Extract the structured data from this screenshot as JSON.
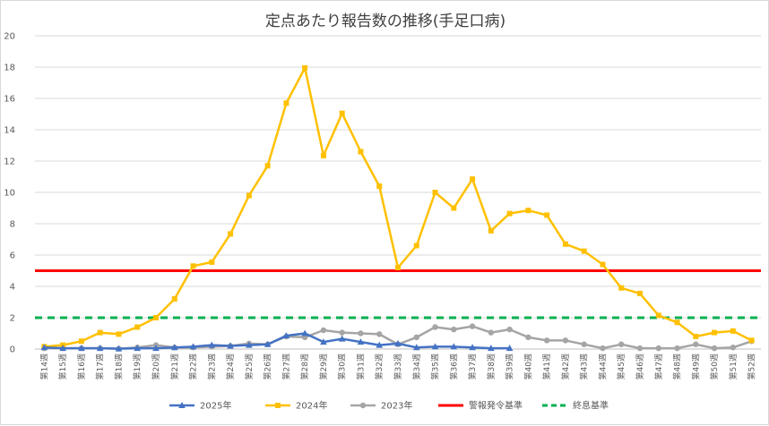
{
  "chart_data": {
    "type": "line",
    "title": "定点あたり報告数の推移(手足口病)",
    "ylim": [
      0,
      20
    ],
    "yticks": [
      0,
      2,
      4,
      6,
      8,
      10,
      12,
      14,
      16,
      18,
      20
    ],
    "grid": true,
    "legend_position": "bottom",
    "categories": [
      "第14週",
      "第15週",
      "第16週",
      "第17週",
      "第18週",
      "第19週",
      "第20週",
      "第21週",
      "第22週",
      "第23週",
      "第24週",
      "第25週",
      "第26週",
      "第27週",
      "第28週",
      "第29週",
      "第30週",
      "第31週",
      "第32週",
      "第33週",
      "第34週",
      "第35週",
      "第36週",
      "第37週",
      "第38週",
      "第39週",
      "第40週",
      "第41週",
      "第42週",
      "第43週",
      "第44週",
      "第45週",
      "第46週",
      "第47週",
      "第48週",
      "第49週",
      "第50週",
      "第51週",
      "第52週"
    ],
    "series": [
      {
        "name": "2025年",
        "color": "#4472c4",
        "marker": "triangle",
        "values": [
          0.1,
          0.05,
          0.05,
          0.05,
          0.02,
          0.05,
          0.05,
          0.1,
          0.15,
          0.25,
          0.2,
          0.25,
          0.3,
          0.85,
          1.0,
          0.45,
          0.65,
          0.45,
          0.25,
          0.35,
          0.1,
          0.15,
          0.15,
          0.1,
          0.05,
          0.05,
          null,
          null,
          null,
          null,
          null,
          null,
          null,
          null,
          null,
          null,
          null,
          null,
          null
        ]
      },
      {
        "name": "2024年",
        "color": "#ffc000",
        "marker": "square",
        "values": [
          0.15,
          0.25,
          0.5,
          1.05,
          0.95,
          1.4,
          2.0,
          3.2,
          5.3,
          5.55,
          7.35,
          9.8,
          11.7,
          15.7,
          17.95,
          12.35,
          15.05,
          12.6,
          10.4,
          5.2,
          6.6,
          10.0,
          9.0,
          10.85,
          7.55,
          8.65,
          8.85,
          8.55,
          6.7,
          6.25,
          5.4,
          3.9,
          3.55,
          2.15,
          1.7,
          0.8,
          1.05,
          1.15,
          0.55
        ]
      },
      {
        "name": "2023年",
        "color": "#a5a5a5",
        "marker": "circle",
        "values": [
          0.05,
          0.05,
          0.05,
          0.05,
          0.02,
          0.1,
          0.25,
          0.1,
          0.1,
          0.15,
          0.2,
          0.35,
          0.3,
          0.8,
          0.75,
          1.2,
          1.05,
          1.0,
          0.95,
          0.3,
          0.75,
          1.4,
          1.25,
          1.45,
          1.05,
          1.25,
          0.75,
          0.55,
          0.55,
          0.3,
          0.05,
          0.3,
          0.05,
          0.05,
          0.05,
          0.3,
          0.05,
          0.1,
          0.5
        ]
      },
      {
        "name": "警報発令基準",
        "color": "#ff0000",
        "style": "solid",
        "constant": 5
      },
      {
        "name": "終息基準",
        "color": "#00b050",
        "style": "dashed",
        "constant": 2
      }
    ]
  }
}
